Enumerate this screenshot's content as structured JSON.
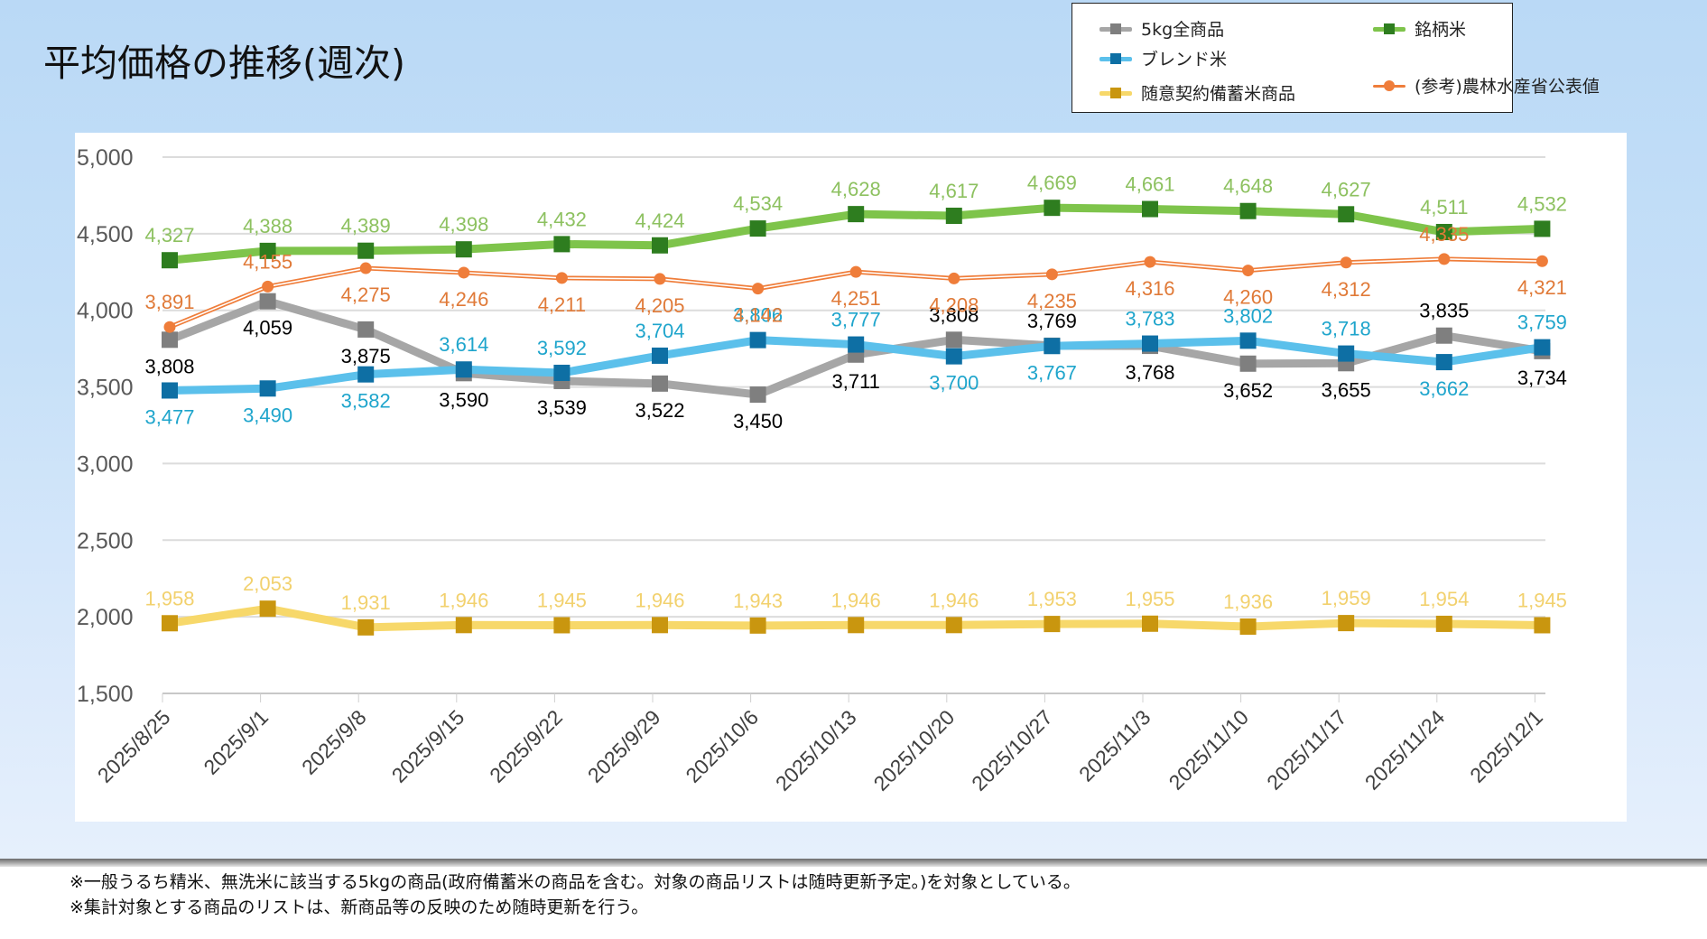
{
  "title": "平均価格の推移(週次)",
  "legend": [
    {
      "key": "all5kg",
      "label": "5kg全商品"
    },
    {
      "key": "brand",
      "label": "銘柄米"
    },
    {
      "key": "blend",
      "label": "ブレンド米"
    },
    {
      "key": "reserve",
      "label": "随意契約備蓄米商品"
    },
    {
      "key": "maff",
      "label": "(参考)農林水産省公表値"
    }
  ],
  "notes": [
    "※一般うるち精米、無洗米に該当する5kgの商品(政府備蓄米の商品を含む。対象の商品リストは随時更新予定。)を対象としている。",
    "※集計対象とする商品のリストは、新商品等の反映のため随時更新を行う。"
  ],
  "chart_data": {
    "type": "line",
    "title": "平均価格の推移(週次)",
    "xlabel": "",
    "ylabel": "",
    "ylim": [
      1500,
      5000
    ],
    "yticks": [
      1500,
      2000,
      2500,
      3000,
      3500,
      4000,
      4500,
      5000
    ],
    "ytick_labels": [
      "1,500",
      "2,000",
      "2,500",
      "3,000",
      "3,500",
      "4,000",
      "4,500",
      "5,000"
    ],
    "grid": true,
    "legend_position": "top-right",
    "categories": [
      "2025/8/25",
      "2025/9/1",
      "2025/9/8",
      "2025/9/15",
      "2025/9/22",
      "2025/9/29",
      "2025/10/6",
      "2025/10/13",
      "2025/10/20",
      "2025/10/27",
      "2025/11/3",
      "2025/11/10",
      "2025/11/17",
      "2025/11/24",
      "2025/12/1"
    ],
    "series": [
      {
        "key": "all5kg",
        "name": "5kg全商品",
        "line_color": "#a6a6a6",
        "marker_color": "#7f7f7f",
        "label_color": "#000000",
        "marker": "square",
        "values": [
          3808,
          4059,
          3875,
          3590,
          3539,
          3522,
          3450,
          3711,
          3808,
          3769,
          3768,
          3652,
          3655,
          3835,
          3734
        ],
        "label_pos": [
          "below",
          "below",
          "below",
          "below",
          "below",
          "below",
          "below",
          "below",
          "above",
          "above",
          "below",
          "below",
          "below",
          "above",
          "below"
        ]
      },
      {
        "key": "brand",
        "name": "銘柄米",
        "line_color": "#7ec44b",
        "marker_color": "#2e7d1f",
        "label_color": "#8dc160",
        "marker": "square",
        "values": [
          4327,
          4388,
          4389,
          4398,
          4432,
          4424,
          4534,
          4628,
          4617,
          4669,
          4661,
          4648,
          4627,
          4511,
          4532
        ],
        "label_pos": [
          "above",
          "above",
          "above",
          "above",
          "above",
          "above",
          "above",
          "above",
          "above",
          "above",
          "above",
          "above",
          "above",
          "above",
          "above"
        ]
      },
      {
        "key": "blend",
        "name": "ブレンド米",
        "line_color": "#5bc0eb",
        "marker_color": "#0e6fa4",
        "label_color": "#1fa5cc",
        "marker": "square",
        "values": [
          3477,
          3490,
          3582,
          3614,
          3592,
          3704,
          3806,
          3777,
          3700,
          3767,
          3783,
          3802,
          3718,
          3662,
          3759
        ],
        "label_pos": [
          "below",
          "below",
          "below",
          "above",
          "above",
          "above",
          "above",
          "above",
          "below",
          "below",
          "above",
          "above",
          "above",
          "below",
          "above"
        ]
      },
      {
        "key": "reserve",
        "name": "随意契約備蓄米商品",
        "line_color": "#f7d86a",
        "marker_color": "#c9960f",
        "label_color": "#f2d16e",
        "marker": "square",
        "values": [
          1958,
          2053,
          1931,
          1946,
          1945,
          1946,
          1943,
          1946,
          1946,
          1953,
          1955,
          1936,
          1959,
          1954,
          1945
        ],
        "label_pos": [
          "above",
          "above",
          "above",
          "above",
          "above",
          "above",
          "above",
          "above",
          "above",
          "above",
          "above",
          "above",
          "above",
          "above",
          "above"
        ]
      },
      {
        "key": "maff",
        "name": "(参考)農林水産省公表値",
        "line_color": "#ef7d3a",
        "marker_color": "#ef7d3a",
        "label_color": "#e07a38",
        "marker": "circle",
        "values": [
          3891,
          4155,
          4275,
          4246,
          4211,
          4205,
          4142,
          4251,
          4208,
          4235,
          4316,
          4260,
          4312,
          4335,
          4321
        ],
        "label_pos": [
          "above",
          "above",
          "below",
          "below",
          "below",
          "below",
          "below",
          "below",
          "below",
          "below",
          "below",
          "below",
          "below",
          "above",
          "below"
        ]
      }
    ]
  }
}
